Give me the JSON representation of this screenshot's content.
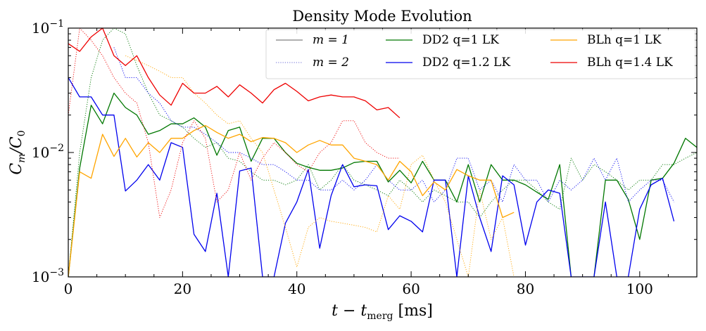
{
  "chart_data": {
    "type": "line",
    "title": "Density Mode Evolution",
    "xlabel": "t − t",
    "xlabel_sub": "merg",
    "xlabel_unit": " [ms]",
    "ylabel": "C",
    "ylabel_sub_num": "m",
    "ylabel_den": "/C",
    "ylabel_sub_den": "0",
    "xlim": [
      0,
      110
    ],
    "ylim": [
      0.001,
      0.1
    ],
    "yscale": "log",
    "xticks": [
      0,
      20,
      40,
      60,
      80,
      100
    ],
    "xtick_labels": [
      "0",
      "20",
      "40",
      "60",
      "80",
      "100"
    ],
    "yticks": [
      0.001,
      0.01,
      0.1
    ],
    "ytick_labels": [
      {
        "base": "10",
        "exp": "−3"
      },
      {
        "base": "10",
        "exp": "−2"
      },
      {
        "base": "10",
        "exp": "−1"
      }
    ],
    "legend_position": "top-right",
    "legend": [
      {
        "label": "m = 1",
        "style": "solid",
        "color": "#808080"
      },
      {
        "label": "m = 2",
        "style": "dotted",
        "color": "#6b6bd6"
      },
      {
        "label": "DD2 q=1 LK",
        "style": "solid",
        "color": "#007700"
      },
      {
        "label": "DD2 q=1.2 LK",
        "style": "solid",
        "color": "#0000ee"
      },
      {
        "label": "BLh q=1 LK",
        "style": "solid",
        "color": "#ffa500"
      },
      {
        "label": "BLh q=1.4 LK",
        "style": "solid",
        "color": "#ee0000"
      }
    ],
    "series": [
      {
        "name": "DD2 q=1 LK",
        "mode": "m = 1",
        "color": "#007700",
        "style": "solid",
        "x": [
          0,
          2,
          4,
          6,
          8,
          10,
          12,
          14,
          16,
          18,
          20,
          22,
          24,
          26,
          28,
          30,
          32,
          34,
          36,
          38,
          40,
          42,
          44,
          46,
          48,
          50,
          52,
          54,
          56,
          58,
          60,
          62,
          64,
          66,
          68,
          70,
          72,
          74,
          76,
          78,
          80,
          82,
          84,
          86,
          88,
          90,
          92,
          94,
          96,
          98,
          100,
          102,
          104,
          106,
          108,
          110
        ],
        "y": [
          0.001,
          0.0075,
          0.024,
          0.017,
          0.03,
          0.023,
          0.02,
          0.014,
          0.015,
          0.017,
          0.017,
          0.019,
          0.016,
          0.0095,
          0.015,
          0.016,
          0.0085,
          0.013,
          0.013,
          0.01,
          0.0082,
          0.0076,
          0.0072,
          0.0072,
          0.0075,
          0.0083,
          0.0085,
          0.0085,
          0.0058,
          0.0072,
          0.0057,
          0.0085,
          0.006,
          0.006,
          0.004,
          0.008,
          0.004,
          0.008,
          0.006,
          0.006,
          0.0055,
          0.0048,
          0.0042,
          0.008,
          0.001,
          0.0003,
          0.001,
          0.006,
          0.006,
          0.0042,
          0.002,
          0.006,
          0.0062,
          0.0082,
          0.013,
          0.011
        ]
      },
      {
        "name": "DD2 q=1 LK",
        "mode": "m = 2",
        "color": "#007700",
        "style": "dotted",
        "x": [
          0,
          2,
          4,
          6,
          8,
          10,
          12,
          14,
          16,
          18,
          20,
          22,
          24,
          26,
          28,
          30,
          32,
          34,
          36,
          38,
          40,
          42,
          44,
          46,
          48,
          50,
          52,
          54,
          56,
          58,
          60,
          62,
          64,
          66,
          68,
          70,
          72,
          74,
          76,
          78,
          80,
          82,
          84,
          86,
          88,
          90,
          92,
          94,
          96,
          98,
          100,
          102,
          104,
          106,
          108,
          110
        ],
        "y": [
          0.001,
          0.01,
          0.04,
          0.08,
          0.1,
          0.09,
          0.05,
          0.03,
          0.02,
          0.018,
          0.016,
          0.013,
          0.011,
          0.012,
          0.009,
          0.0085,
          0.007,
          0.006,
          0.006,
          0.0055,
          0.006,
          0.008,
          0.005,
          0.006,
          0.008,
          0.006,
          0.0055,
          0.005,
          0.0045,
          0.006,
          0.005,
          0.004,
          0.005,
          0.0045,
          0.004,
          0.004,
          0.003,
          0.004,
          0.005,
          0.006,
          0.006,
          0.005,
          0.004,
          0.0035,
          0.009,
          0.006,
          0.008,
          0.007,
          0.006,
          0.005,
          0.006,
          0.006,
          0.008,
          0.008,
          0.009,
          0.01
        ]
      },
      {
        "name": "DD2 q=1.2 LK",
        "mode": "m = 1",
        "color": "#0000ee",
        "style": "solid",
        "x": [
          0,
          2,
          4,
          6,
          8,
          10,
          12,
          14,
          16,
          18,
          20,
          22,
          24,
          26,
          28,
          30,
          32,
          34,
          36,
          38,
          40,
          42,
          44,
          46,
          48,
          50,
          52,
          54,
          56,
          58,
          60,
          62,
          64,
          66,
          68,
          70,
          72,
          74,
          76,
          78,
          80,
          82,
          84,
          86,
          88,
          90,
          92,
          94,
          96,
          98,
          100,
          102,
          104,
          106
        ],
        "y": [
          0.04,
          0.028,
          0.028,
          0.02,
          0.02,
          0.0049,
          0.006,
          0.008,
          0.006,
          0.012,
          0.011,
          0.0022,
          0.0016,
          0.0047,
          0.001,
          0.0071,
          0.0075,
          0.001,
          0.001,
          0.0027,
          0.004,
          0.0073,
          0.0017,
          0.0045,
          0.008,
          0.0053,
          0.0055,
          0.0054,
          0.0024,
          0.0031,
          0.0028,
          0.0023,
          0.006,
          0.006,
          0.001,
          0.0065,
          0.003,
          0.0016,
          0.0065,
          0.0055,
          0.0018,
          0.004,
          0.005,
          0.0047,
          0.001,
          0.001,
          0.001,
          0.004,
          0.001,
          0.001,
          0.0035,
          0.0055,
          0.0062,
          0.0028
        ]
      },
      {
        "name": "DD2 q=1.2 LK",
        "mode": "m = 2",
        "color": "#0000ee",
        "style": "dotted",
        "x": [
          8,
          10,
          12,
          14,
          16,
          18,
          20,
          22,
          24,
          26,
          28,
          30,
          32,
          34,
          36,
          38,
          40,
          42,
          44,
          46,
          48,
          50,
          52,
          54,
          56,
          58,
          60,
          62,
          64,
          66,
          68,
          70,
          72,
          74,
          76,
          78,
          80,
          82,
          84,
          86,
          88,
          90,
          92,
          94,
          96,
          98,
          100,
          102,
          104,
          106
        ],
        "y": [
          0.07,
          0.04,
          0.04,
          0.03,
          0.025,
          0.018,
          0.016,
          0.016,
          0.014,
          0.012,
          0.01,
          0.01,
          0.009,
          0.008,
          0.008,
          0.007,
          0.006,
          0.006,
          0.005,
          0.005,
          0.006,
          0.005,
          0.006,
          0.008,
          0.006,
          0.005,
          0.005,
          0.006,
          0.004,
          0.005,
          0.009,
          0.009,
          0.005,
          0.006,
          0.004,
          0.008,
          0.006,
          0.006,
          0.004,
          0.006,
          0.005,
          0.006,
          0.009,
          0.006,
          0.009,
          0.004,
          0.005,
          0.006,
          0.006,
          0.004
        ]
      },
      {
        "name": "BLh q=1 LK",
        "mode": "m = 1",
        "color": "#ffa500",
        "style": "solid",
        "x": [
          0,
          2,
          4,
          6,
          8,
          10,
          12,
          14,
          16,
          18,
          20,
          22,
          24,
          26,
          28,
          30,
          32,
          34,
          36,
          38,
          40,
          42,
          44,
          46,
          48,
          50,
          52,
          54,
          56,
          58,
          60,
          62,
          64,
          66,
          68,
          70,
          72,
          74,
          76,
          78
        ],
        "y": [
          0.001,
          0.007,
          0.0062,
          0.014,
          0.0093,
          0.013,
          0.0092,
          0.012,
          0.01,
          0.013,
          0.013,
          0.015,
          0.0165,
          0.0145,
          0.013,
          0.014,
          0.0122,
          0.0132,
          0.013,
          0.012,
          0.01,
          0.0115,
          0.0125,
          0.0115,
          0.0115,
          0.009,
          0.0085,
          0.008,
          0.006,
          0.0085,
          0.007,
          0.0045,
          0.0058,
          0.005,
          0.0073,
          0.0065,
          0.006,
          0.006,
          0.003,
          0.0033
        ]
      },
      {
        "name": "BLh q=1 LK",
        "mode": "m = 2",
        "color": "#ffa500",
        "style": "dotted",
        "x": [
          10,
          12,
          14,
          16,
          18,
          20,
          22,
          24,
          26,
          28,
          30,
          32,
          34,
          36,
          38,
          40,
          42,
          44,
          46,
          48,
          50,
          52,
          54,
          56,
          58,
          60,
          62,
          64,
          66,
          68,
          70,
          72,
          74,
          76,
          78
        ],
        "y": [
          0.06,
          0.055,
          0.05,
          0.045,
          0.04,
          0.04,
          0.03,
          0.025,
          0.02,
          0.017,
          0.018,
          0.013,
          0.01,
          0.005,
          0.0025,
          0.0012,
          0.0025,
          0.003,
          0.0028,
          0.0027,
          0.0026,
          0.0025,
          0.0023,
          0.0045,
          0.0035,
          0.008,
          0.0095,
          0.006,
          0.004,
          0.002,
          0.001,
          0.005,
          0.002,
          0.003,
          0.001
        ]
      },
      {
        "name": "BLh q=1.4 LK",
        "mode": "m = 1",
        "color": "#ee0000",
        "style": "solid",
        "x": [
          0,
          2,
          4,
          6,
          8,
          10,
          12,
          14,
          16,
          18,
          20,
          22,
          24,
          26,
          28,
          30,
          32,
          34,
          36,
          38,
          40,
          42,
          44,
          46,
          48,
          50,
          52,
          54,
          56,
          58
        ],
        "y": [
          0.075,
          0.065,
          0.085,
          0.1,
          0.06,
          0.05,
          0.06,
          0.04,
          0.029,
          0.024,
          0.036,
          0.03,
          0.03,
          0.034,
          0.028,
          0.035,
          0.03,
          0.025,
          0.032,
          0.036,
          0.031,
          0.026,
          0.028,
          0.029,
          0.028,
          0.028,
          0.026,
          0.022,
          0.023,
          0.019
        ]
      },
      {
        "name": "BLh q=1.4 LK",
        "mode": "m = 2",
        "color": "#ee0000",
        "style": "dotted",
        "x": [
          0,
          2,
          4,
          6,
          8,
          10,
          12,
          14,
          16,
          18,
          20,
          22,
          24,
          26,
          28,
          30,
          32,
          34,
          36,
          38,
          40,
          42,
          44,
          46,
          48,
          50,
          52,
          54,
          56,
          58
        ],
        "y": [
          0.02,
          0.1,
          0.08,
          0.06,
          0.04,
          0.03,
          0.025,
          0.012,
          0.003,
          0.005,
          0.012,
          0.018,
          0.013,
          0.004,
          0.005,
          0.01,
          0.006,
          0.009,
          0.012,
          0.01,
          0.008,
          0.007,
          0.01,
          0.012,
          0.018,
          0.018,
          0.012,
          0.01,
          0.009,
          0.009
        ]
      }
    ]
  }
}
